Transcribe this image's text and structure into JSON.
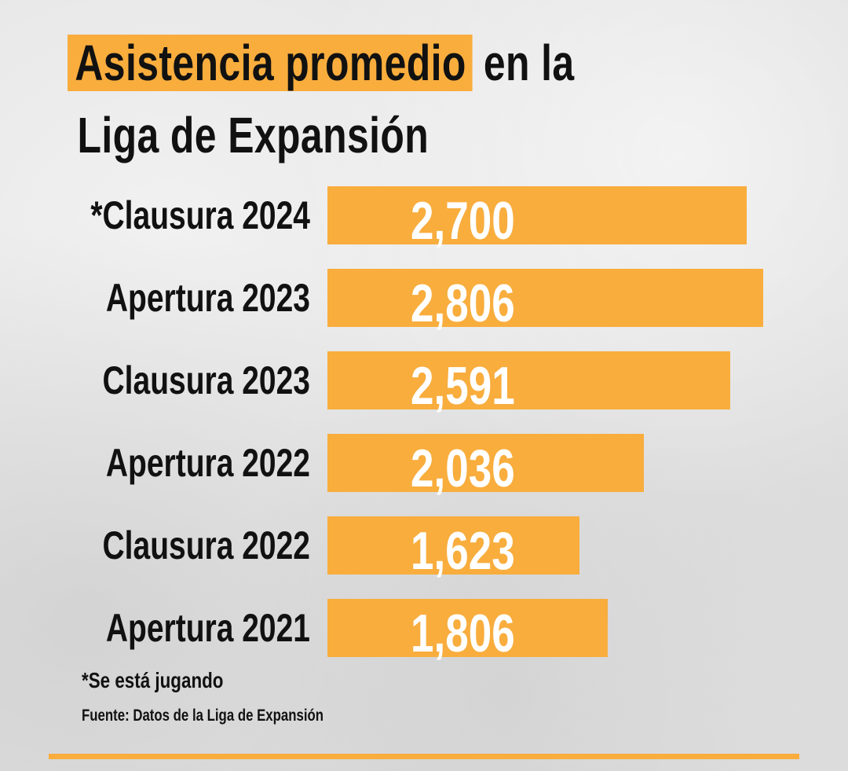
{
  "title": {
    "highlight": "Asistencia promedio",
    "rest": " en la",
    "line2": "Liga de Expansión"
  },
  "chart_data": {
    "type": "bar",
    "orientation": "horizontal",
    "title": "Asistencia promedio en la Liga de Expansión",
    "categories": [
      "*Clausura 2024",
      "Apertura 2023",
      "Clausura 2023",
      "Apertura 2022",
      "Clausura 2022",
      "Apertura 2021"
    ],
    "values": [
      2700,
      2806,
      2591,
      2036,
      1623,
      1806
    ],
    "value_labels": [
      "2,700",
      "2,806",
      "2,591",
      "2,036",
      "1,623",
      "1,806"
    ],
    "bar_color": "#f8ad3d",
    "value_label_color": "#ffffff",
    "grid": false
  },
  "footnote": "*Se está jugando",
  "source": "Fuente: Datos de la Liga de Expansión",
  "colors": {
    "accent": "#f8ad3d",
    "text": "#111111"
  }
}
